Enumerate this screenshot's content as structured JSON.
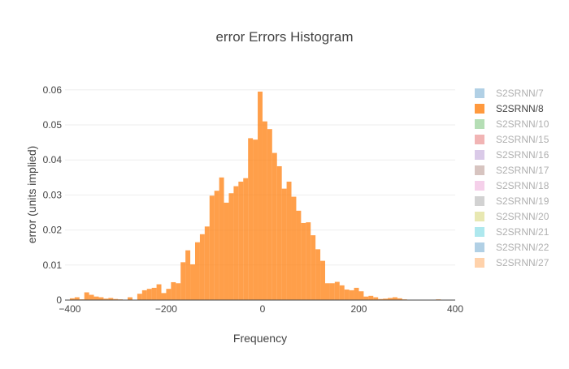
{
  "chart_data": {
    "type": "bar",
    "title": "error Errors Histogram",
    "xlabel": "Frequency",
    "ylabel": "error (units implied)",
    "xlim": [
      -410,
      400
    ],
    "ylim": [
      0,
      0.0625
    ],
    "bin_width": 10,
    "x_ticks": [
      -400,
      -200,
      0,
      200,
      400
    ],
    "x_tick_labels": [
      "−400",
      "−200",
      "0",
      "200",
      "400"
    ],
    "y_ticks": [
      0,
      0.01,
      0.02,
      0.03,
      0.04,
      0.05,
      0.06
    ],
    "y_tick_labels": [
      "0",
      "0.01",
      "0.02",
      "0.03",
      "0.04",
      "0.05",
      "0.06"
    ],
    "grid": true,
    "legend_position": "right",
    "series": [
      {
        "name": "S2SRNN/8",
        "color": "#ff7f0e",
        "x": [
          -400,
          -390,
          -380,
          -370,
          -360,
          -350,
          -340,
          -330,
          -320,
          -310,
          -300,
          -290,
          -280,
          -270,
          -260,
          -250,
          -240,
          -230,
          -220,
          -210,
          -200,
          -190,
          -180,
          -170,
          -160,
          -150,
          -140,
          -130,
          -120,
          -110,
          -100,
          -90,
          -80,
          -70,
          -60,
          -50,
          -40,
          -30,
          -20,
          -10,
          0,
          10,
          20,
          30,
          40,
          50,
          60,
          70,
          80,
          90,
          100,
          110,
          120,
          130,
          140,
          150,
          160,
          170,
          180,
          190,
          200,
          210,
          220,
          230,
          240,
          250,
          260,
          270,
          280,
          290,
          300,
          310,
          320,
          330,
          340,
          350,
          360,
          370,
          380,
          390
        ],
        "values": [
          0.0005,
          0.0008,
          0.0002,
          0.0022,
          0.0015,
          0.001,
          0.0008,
          0.0004,
          0.0006,
          0.0003,
          0.0002,
          0.0001,
          0.0008,
          0.0,
          0.0018,
          0.0028,
          0.0032,
          0.0035,
          0.0045,
          0.002,
          0.0032,
          0.0051,
          0.0048,
          0.0108,
          0.0142,
          0.0102,
          0.0165,
          0.0188,
          0.021,
          0.0298,
          0.0312,
          0.035,
          0.0278,
          0.0305,
          0.0325,
          0.0338,
          0.0348,
          0.0462,
          0.0458,
          0.0595,
          0.051,
          0.0488,
          0.042,
          0.0382,
          0.0318,
          0.0338,
          0.0295,
          0.0255,
          0.022,
          0.0222,
          0.0185,
          0.0145,
          0.0112,
          0.0048,
          0.0048,
          0.0052,
          0.0042,
          0.003,
          0.0028,
          0.0035,
          0.0025,
          0.001,
          0.0012,
          0.0008,
          0.0003,
          0.0004,
          0.0006,
          0.0008,
          0.0005,
          0.0002,
          0.0001,
          0.0001,
          0.0001,
          0.0001,
          0.0,
          0.0001,
          0.0002,
          0.0001,
          0.0,
          0.0001
        ]
      }
    ]
  },
  "legend": {
    "items": [
      {
        "name": "S2SRNN/7",
        "color": "#1f77b4",
        "active": false
      },
      {
        "name": "S2SRNN/8",
        "color": "#ff7f0e",
        "active": true
      },
      {
        "name": "S2SRNN/10",
        "color": "#2ca02c",
        "active": false
      },
      {
        "name": "S2SRNN/15",
        "color": "#d62728",
        "active": false
      },
      {
        "name": "S2SRNN/16",
        "color": "#9467bd",
        "active": false
      },
      {
        "name": "S2SRNN/17",
        "color": "#8c564b",
        "active": false
      },
      {
        "name": "S2SRNN/18",
        "color": "#e377c2",
        "active": false
      },
      {
        "name": "S2SRNN/19",
        "color": "#7f7f7f",
        "active": false
      },
      {
        "name": "S2SRNN/20",
        "color": "#bcbd22",
        "active": false
      },
      {
        "name": "S2SRNN/21",
        "color": "#17becf",
        "active": false
      },
      {
        "name": "S2SRNN/22",
        "color": "#1f77b4",
        "active": false
      },
      {
        "name": "S2SRNN/27",
        "color": "#ff7f0e",
        "active": false
      }
    ]
  }
}
